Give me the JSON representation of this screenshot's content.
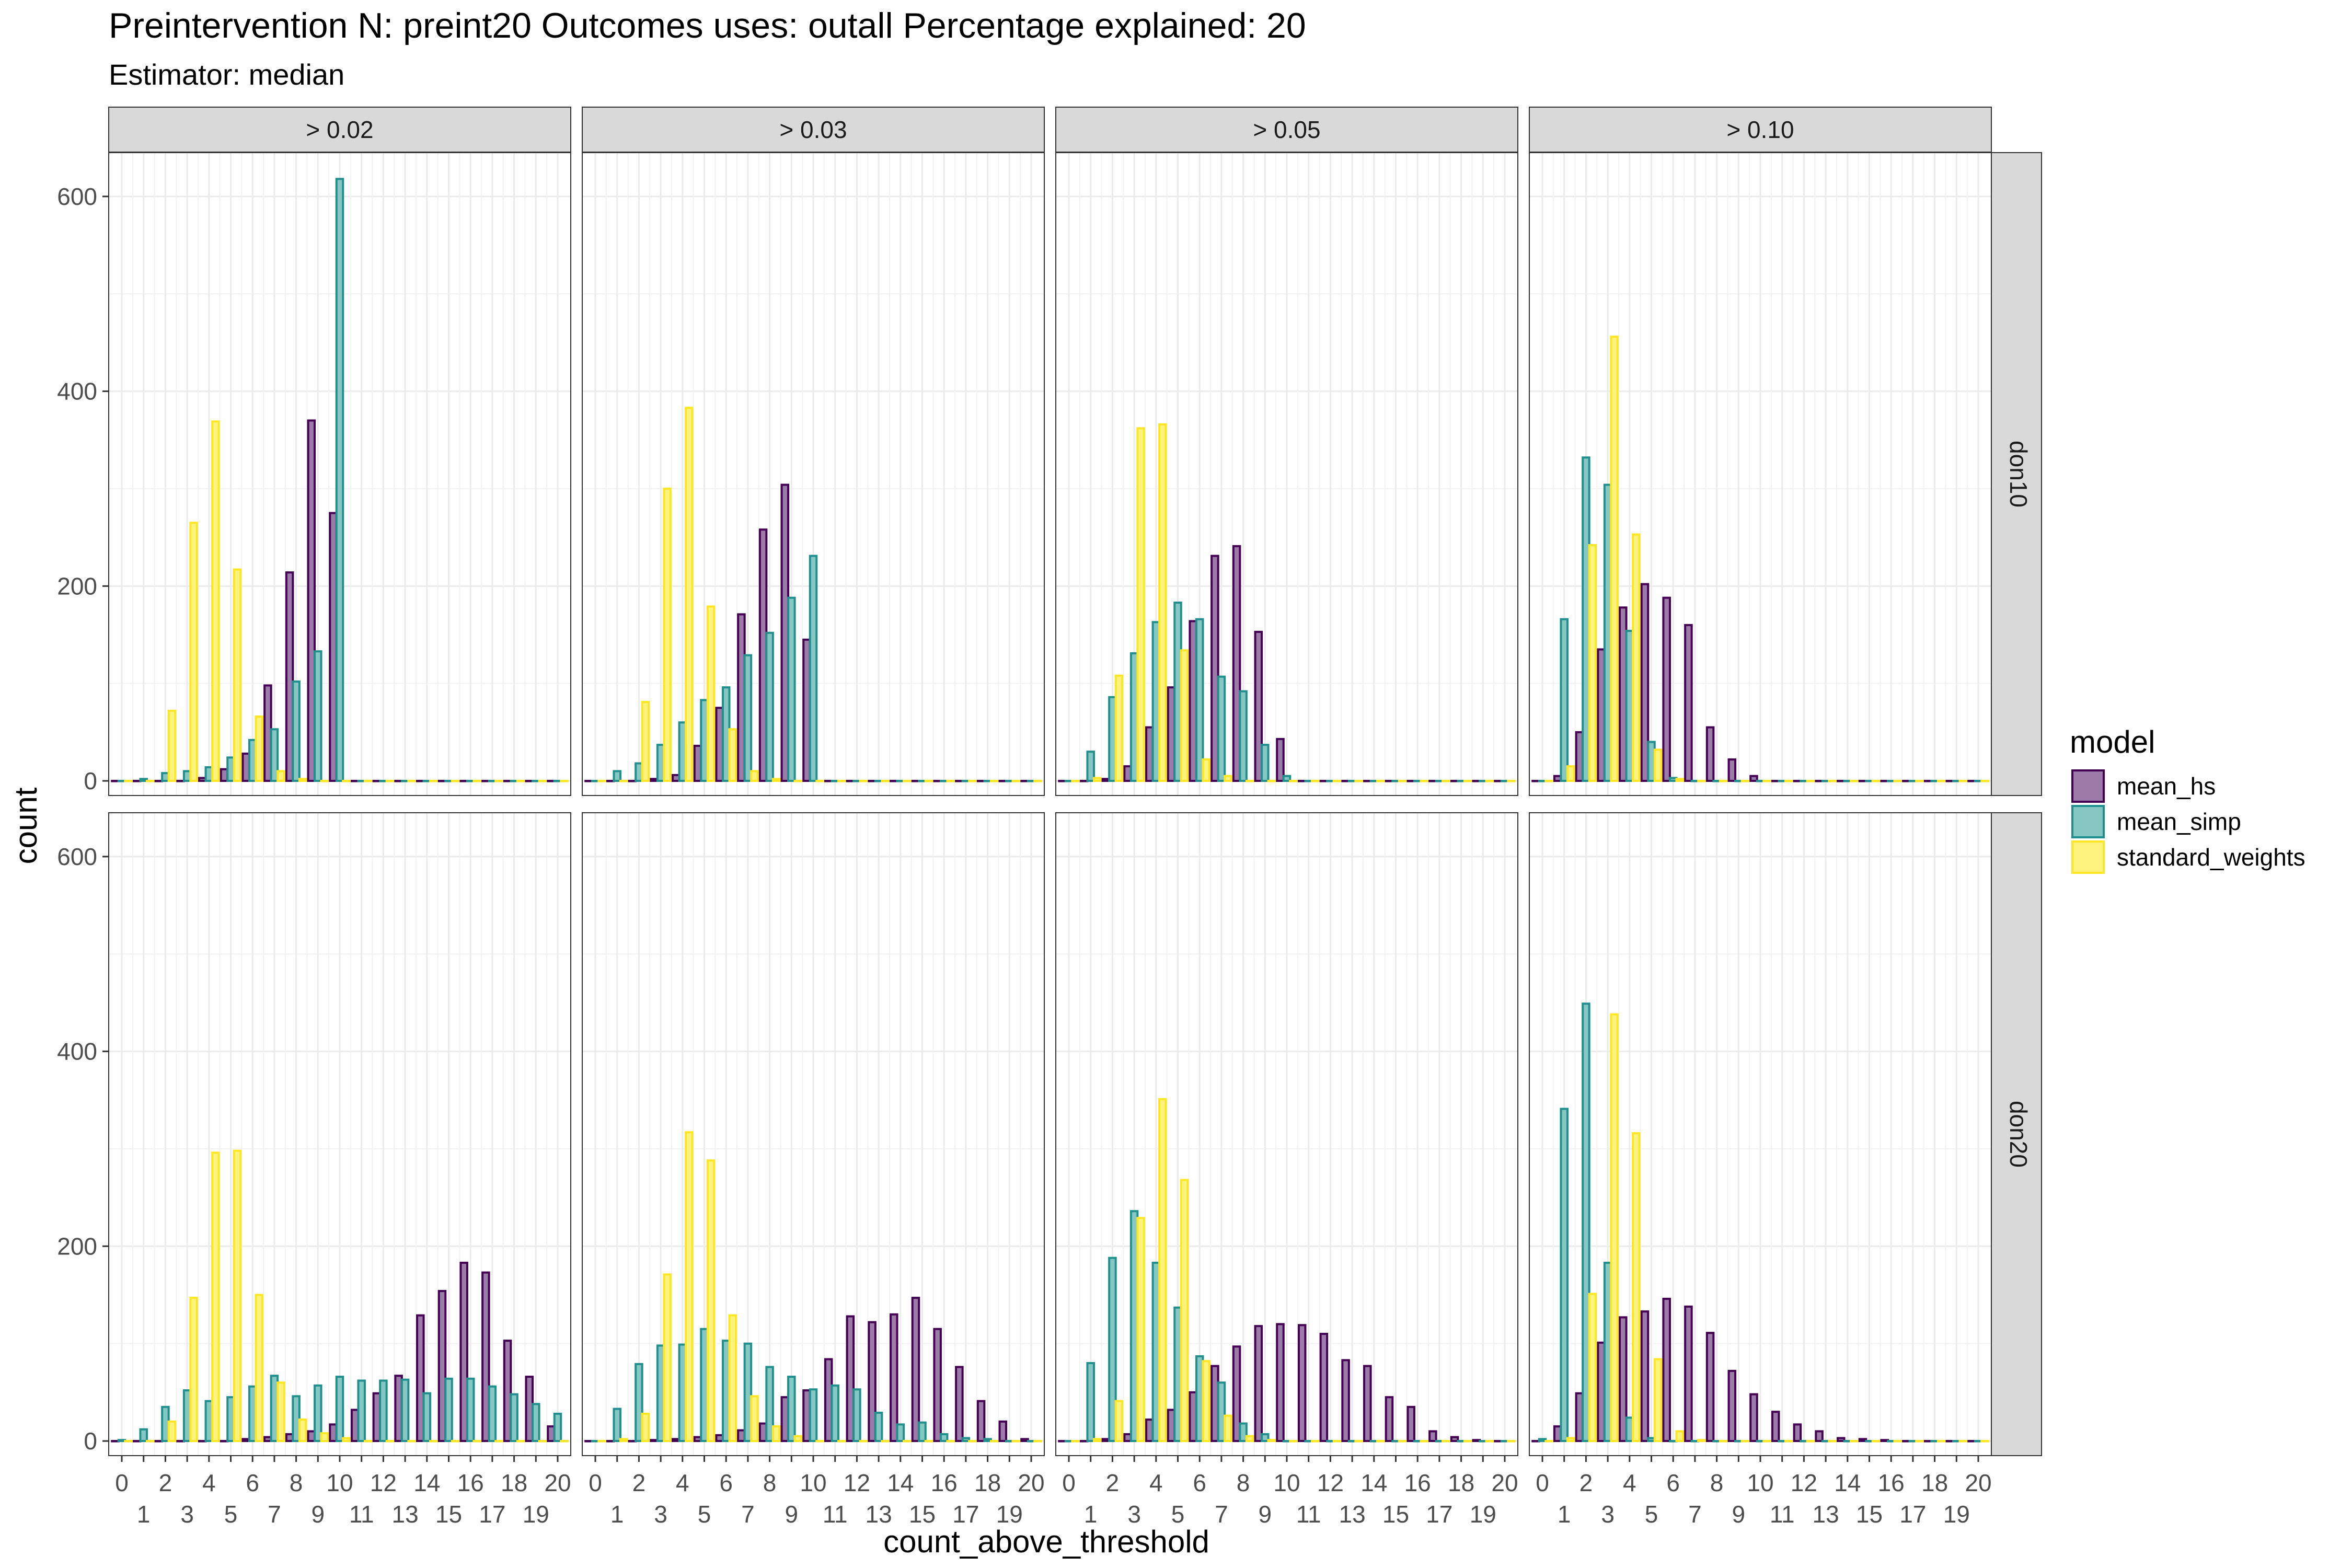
{
  "chart_data": {
    "type": "bar",
    "title": "Preintervention N: preint20 Outcomes uses: outall Percentage explained: 20",
    "subtitle": "Estimator: median",
    "xlabel": "count_above_threshold",
    "ylabel": "count",
    "x": [
      0,
      1,
      2,
      3,
      4,
      5,
      6,
      7,
      8,
      9,
      10,
      11,
      12,
      13,
      14,
      15,
      16,
      17,
      18,
      19,
      20
    ],
    "x_ticks_top": [
      "0",
      "2",
      "4",
      "6",
      "8",
      "10",
      "12",
      "14",
      "16",
      "18",
      "20"
    ],
    "x_ticks_bottom": [
      "1",
      "3",
      "5",
      "7",
      "9",
      "11",
      "13",
      "15",
      "17",
      "19"
    ],
    "y_ticks": [
      "0",
      "200",
      "400",
      "600"
    ],
    "ylim": [
      -15,
      645
    ],
    "xlim": [
      -0.6,
      20.6
    ],
    "grid": true,
    "legend": {
      "title": "model",
      "placement": "right",
      "entries": [
        "mean_hs",
        "mean_simp",
        "standard_weights"
      ]
    },
    "colors": {
      "mean_hs": {
        "fill": "#9c7ba9",
        "stroke": "#440154"
      },
      "mean_simp": {
        "fill": "#86c7c4",
        "stroke": "#21908c"
      },
      "standard_weights": {
        "fill": "#fff37f",
        "stroke": "#fde725"
      }
    },
    "col_facets": [
      "> 0.02",
      "> 0.03",
      "> 0.05",
      "> 0.10"
    ],
    "row_facets": [
      "don10",
      "don20"
    ],
    "panels": [
      {
        "row": "don10",
        "col": "> 0.02",
        "series": [
          {
            "name": "mean_hs",
            "values": [
              0,
              0,
              0,
              0,
              3,
              12,
              28,
              98,
              214,
              370,
              275,
              0,
              0,
              0,
              0,
              0,
              0,
              0,
              0,
              0,
              0
            ]
          },
          {
            "name": "mean_simp",
            "values": [
              0,
              2,
              8,
              10,
              14,
              24,
              42,
              53,
              102,
              133,
              618,
              0,
              0,
              0,
              0,
              0,
              0,
              0,
              0,
              0,
              0
            ]
          },
          {
            "name": "standard_weights",
            "values": [
              0,
              0,
              72,
              265,
              369,
              217,
              66,
              10,
              2,
              0,
              0,
              0,
              0,
              0,
              0,
              0,
              0,
              0,
              0,
              0,
              0
            ]
          }
        ]
      },
      {
        "row": "don10",
        "col": "> 0.03",
        "series": [
          {
            "name": "mean_hs",
            "values": [
              0,
              0,
              0,
              2,
              6,
              36,
              75,
              171,
              258,
              304,
              145,
              0,
              0,
              0,
              0,
              0,
              0,
              0,
              0,
              0,
              0
            ]
          },
          {
            "name": "mean_simp",
            "values": [
              0,
              10,
              18,
              37,
              60,
              83,
              96,
              129,
              152,
              188,
              231,
              0,
              0,
              0,
              0,
              0,
              0,
              0,
              0,
              0,
              0
            ]
          },
          {
            "name": "standard_weights",
            "values": [
              0,
              0,
              81,
              300,
              383,
              179,
              53,
              10,
              2,
              0,
              0,
              0,
              0,
              0,
              0,
              0,
              0,
              0,
              0,
              0,
              0
            ]
          }
        ]
      },
      {
        "row": "don10",
        "col": "> 0.05",
        "series": [
          {
            "name": "mean_hs",
            "values": [
              0,
              0,
              2,
              15,
              55,
              96,
              164,
              231,
              241,
              153,
              43,
              0,
              0,
              0,
              0,
              0,
              0,
              0,
              0,
              0,
              0
            ]
          },
          {
            "name": "mean_simp",
            "values": [
              0,
              30,
              86,
              131,
              163,
              183,
              166,
              107,
              92,
              37,
              5,
              0,
              0,
              0,
              0,
              0,
              0,
              0,
              0,
              0,
              0
            ]
          },
          {
            "name": "standard_weights",
            "values": [
              0,
              3,
              108,
              362,
              366,
              134,
              22,
              5,
              0,
              0,
              0,
              0,
              0,
              0,
              0,
              0,
              0,
              0,
              0,
              0,
              0
            ]
          }
        ]
      },
      {
        "row": "don10",
        "col": "> 0.10",
        "series": [
          {
            "name": "mean_hs",
            "values": [
              0,
              5,
              50,
              135,
              178,
              202,
              188,
              160,
              55,
              22,
              5,
              0,
              0,
              0,
              0,
              0,
              0,
              0,
              0,
              0,
              0
            ]
          },
          {
            "name": "mean_simp",
            "values": [
              0,
              166,
              332,
              304,
              154,
              40,
              3,
              0,
              0,
              0,
              0,
              0,
              0,
              0,
              0,
              0,
              0,
              0,
              0,
              0,
              0
            ]
          },
          {
            "name": "standard_weights",
            "values": [
              0,
              15,
              242,
              456,
              253,
              32,
              2,
              0,
              0,
              0,
              0,
              0,
              0,
              0,
              0,
              0,
              0,
              0,
              0,
              0,
              0
            ]
          }
        ]
      },
      {
        "row": "don20",
        "col": "> 0.02",
        "series": [
          {
            "name": "mean_hs",
            "values": [
              0,
              0,
              0,
              0,
              0,
              0,
              2,
              4,
              7,
              10,
              17,
              32,
              49,
              67,
              129,
              154,
              183,
              173,
              103,
              66,
              15
            ]
          },
          {
            "name": "mean_simp",
            "values": [
              1,
              12,
              35,
              52,
              41,
              45,
              56,
              67,
              46,
              57,
              66,
              62,
              62,
              63,
              49,
              64,
              64,
              56,
              48,
              38,
              28
            ]
          },
          {
            "name": "standard_weights",
            "values": [
              0,
              0,
              20,
              147,
              296,
              298,
              150,
              60,
              22,
              8,
              3,
              0,
              0,
              0,
              0,
              0,
              0,
              0,
              0,
              0,
              0
            ]
          }
        ]
      },
      {
        "row": "don20",
        "col": "> 0.03",
        "series": [
          {
            "name": "mean_hs",
            "values": [
              0,
              0,
              0,
              1,
              2,
              4,
              6,
              11,
              18,
              45,
              52,
              84,
              128,
              122,
              130,
              147,
              115,
              76,
              41,
              20,
              2
            ]
          },
          {
            "name": "mean_simp",
            "values": [
              0,
              33,
              79,
              98,
              99,
              115,
              103,
              100,
              76,
              66,
              53,
              57,
              53,
              29,
              17,
              19,
              7,
              3,
              2,
              0,
              0
            ]
          },
          {
            "name": "standard_weights",
            "values": [
              0,
              2,
              28,
              171,
              317,
              288,
              129,
              46,
              15,
              5,
              0,
              0,
              0,
              0,
              0,
              0,
              0,
              0,
              0,
              0,
              0
            ]
          }
        ]
      },
      {
        "row": "don20",
        "col": "> 0.05",
        "series": [
          {
            "name": "mean_hs",
            "values": [
              0,
              0,
              2,
              7,
              22,
              32,
              50,
              77,
              97,
              118,
              120,
              119,
              110,
              83,
              77,
              45,
              35,
              10,
              4,
              1,
              0
            ]
          },
          {
            "name": "mean_simp",
            "values": [
              0,
              80,
              188,
              236,
              183,
              137,
              87,
              60,
              18,
              7,
              0,
              0,
              0,
              0,
              0,
              0,
              0,
              0,
              0,
              0,
              0
            ]
          },
          {
            "name": "standard_weights",
            "values": [
              0,
              2,
              41,
              229,
              351,
              268,
              82,
              26,
              5,
              1,
              0,
              0,
              0,
              0,
              0,
              0,
              0,
              0,
              0,
              0,
              0
            ]
          }
        ]
      },
      {
        "row": "don20",
        "col": "> 0.10",
        "series": [
          {
            "name": "mean_hs",
            "values": [
              0,
              15,
              49,
              101,
              127,
              133,
              146,
              138,
              111,
              72,
              48,
              30,
              17,
              10,
              3,
              2,
              1,
              0,
              0,
              0,
              0
            ]
          },
          {
            "name": "mean_simp",
            "values": [
              2,
              341,
              449,
              183,
              24,
              3,
              0,
              0,
              0,
              0,
              0,
              0,
              0,
              0,
              0,
              0,
              0,
              0,
              0,
              0,
              0
            ]
          },
          {
            "name": "standard_weights",
            "values": [
              0,
              3,
              151,
              438,
              316,
              84,
              10,
              1,
              0,
              0,
              0,
              0,
              0,
              0,
              0,
              0,
              0,
              0,
              0,
              0,
              0
            ]
          }
        ]
      }
    ]
  }
}
